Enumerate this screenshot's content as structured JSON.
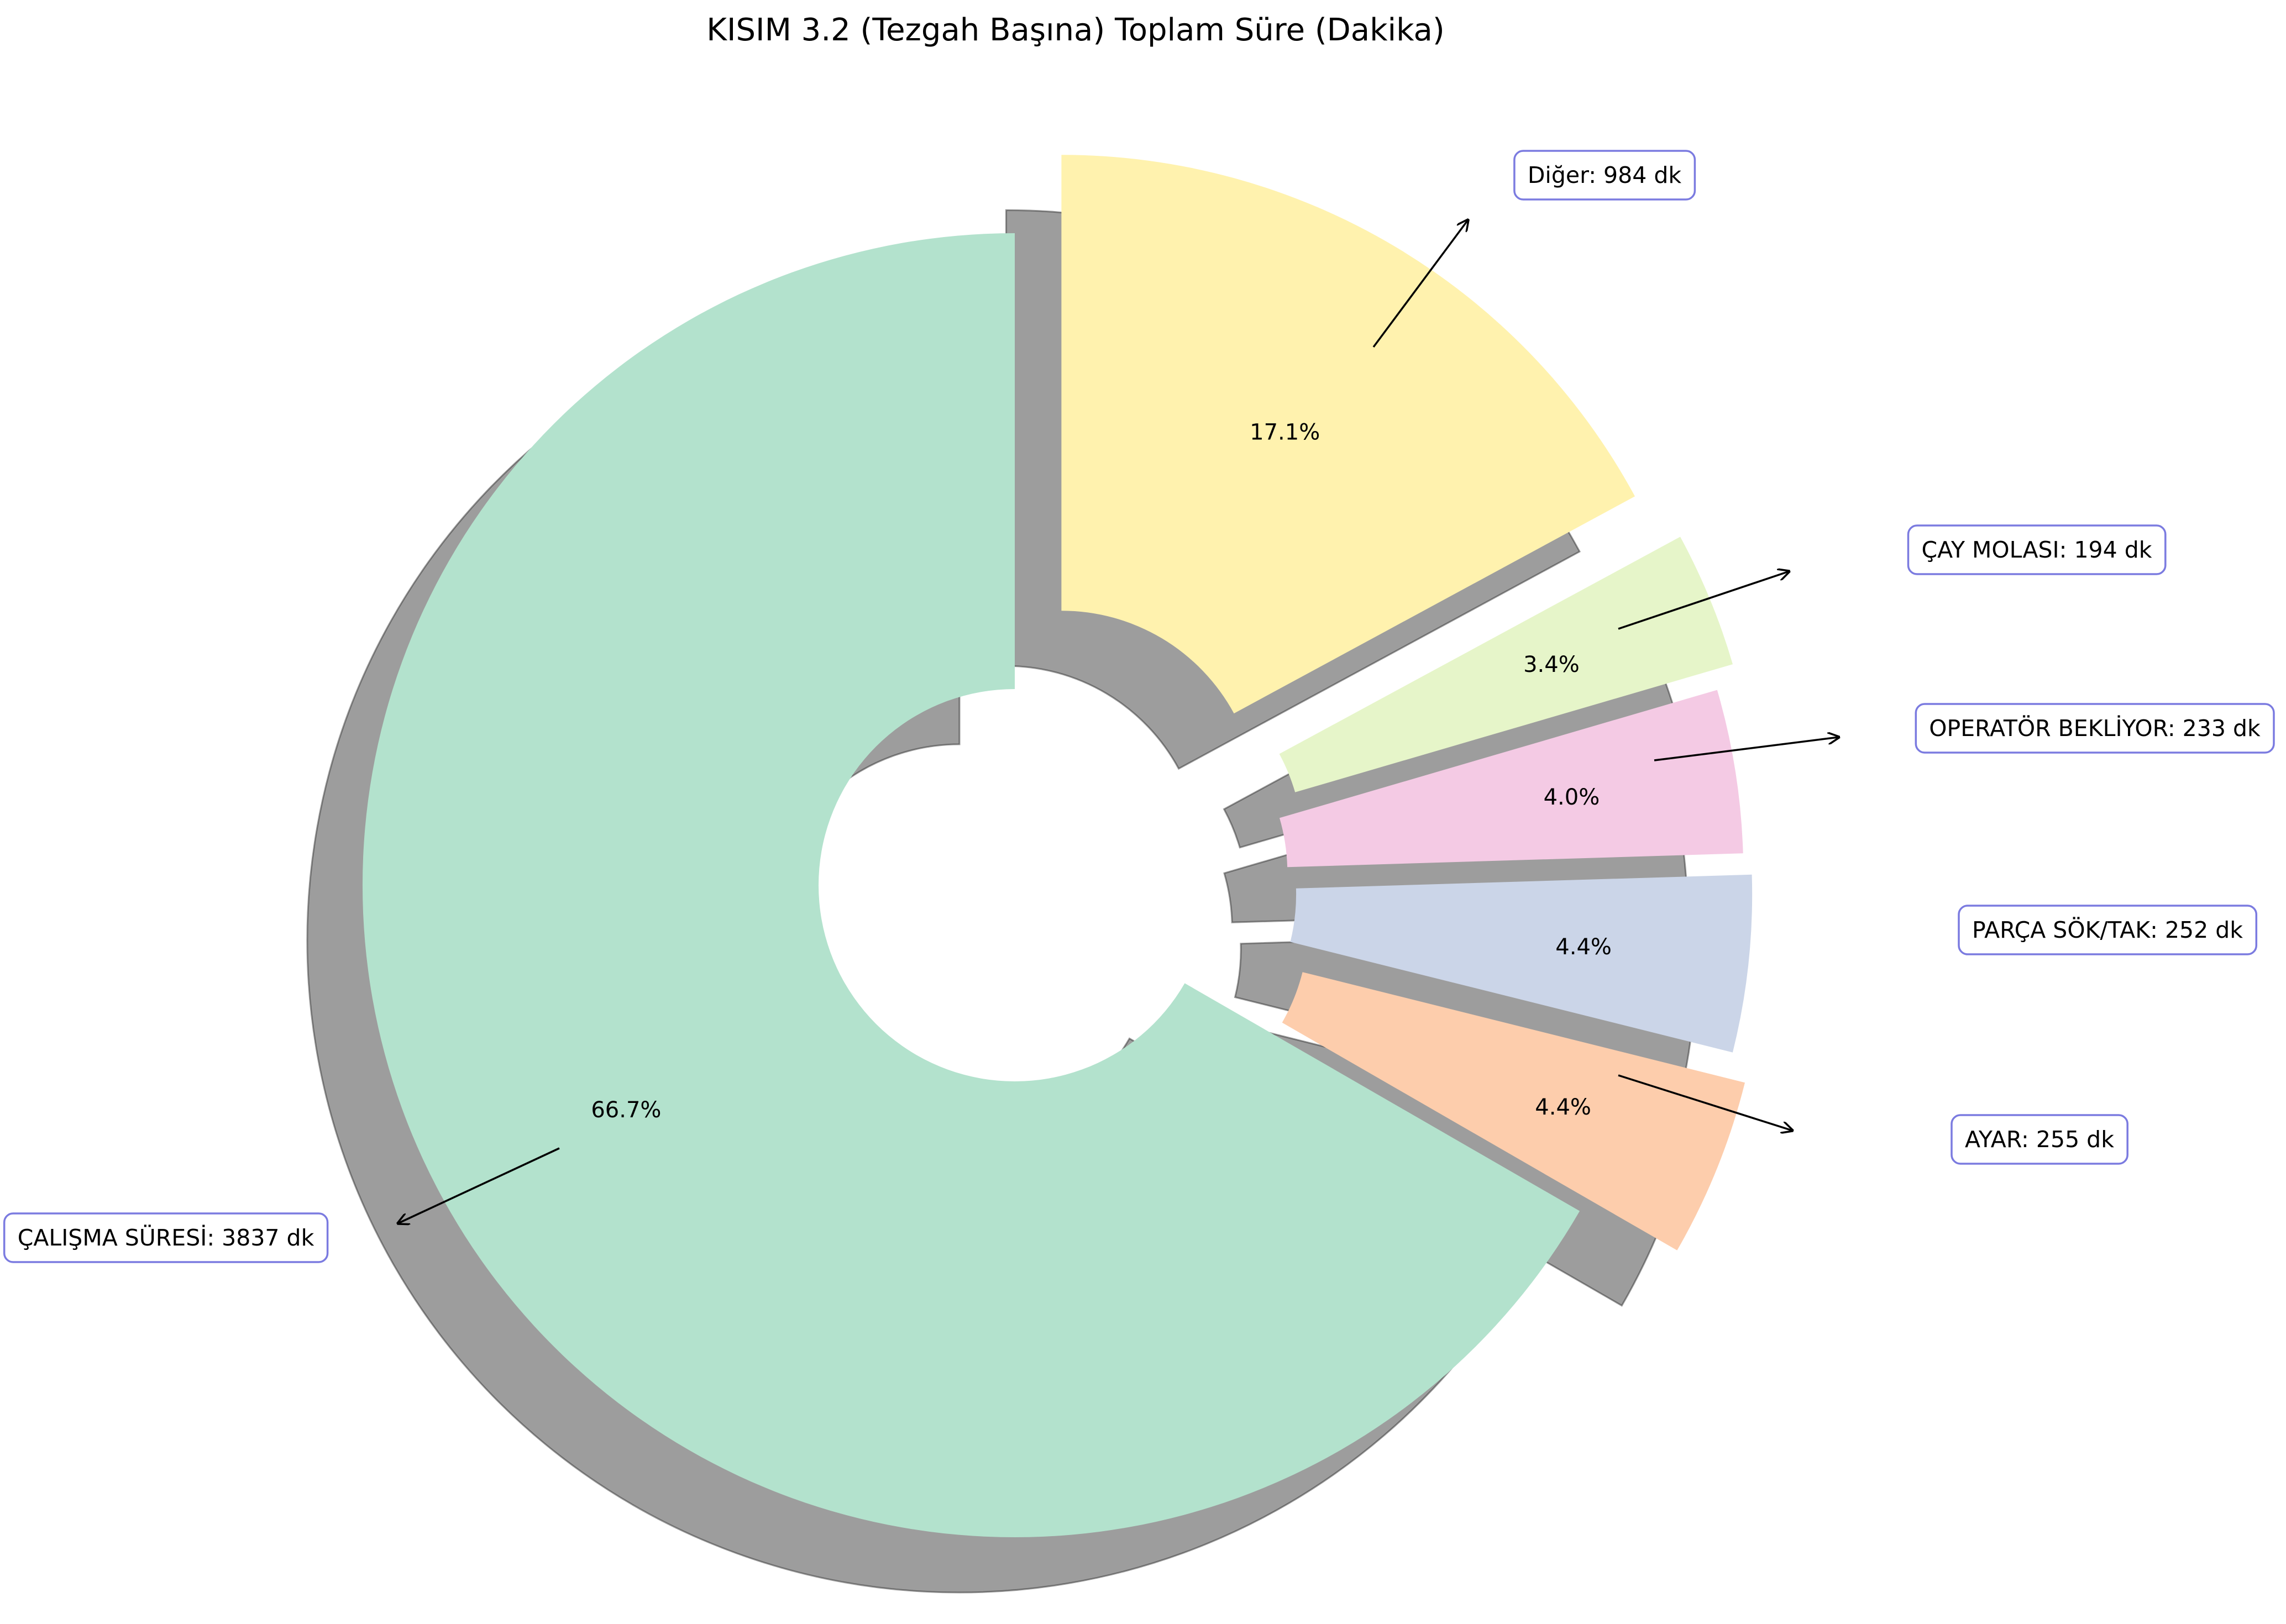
{
  "chart_data": {
    "type": "pie",
    "title": "KISIM 3.2 (Tezgah Başına) Toplam Süre (Dakika)",
    "value_unit": "dk",
    "slices": [
      {
        "label": "ÇALIŞMA SÜRESİ",
        "value": 3837,
        "pct_label": "66.7%",
        "box_label": "ÇALIŞMA SÜRESİ: 3837 dk",
        "color": "#b3e2cd"
      },
      {
        "label": "AYAR",
        "value": 255,
        "pct_label": "4.4%",
        "box_label": "AYAR: 255 dk",
        "color": "#fdcdac"
      },
      {
        "label": "PARÇA SÖK/TAK",
        "value": 252,
        "pct_label": "4.4%",
        "box_label": "PARÇA SÖK/TAK: 252 dk",
        "color": "#cbd5e8"
      },
      {
        "label": "OPERATÖR BEKLİYOR",
        "value": 233,
        "pct_label": "4.0%",
        "box_label": "OPERATÖR BEKLİYOR: 233 dk",
        "color": "#f4cae4"
      },
      {
        "label": "ÇAY MOLASI",
        "value": 194,
        "pct_label": "3.4%",
        "box_label": "ÇAY MOLASI: 194 dk",
        "color": "#e6f5c9"
      },
      {
        "label": "Diğer",
        "value": 984,
        "pct_label": "17.1%",
        "box_label": "Diğer: 984 dk",
        "color": "#fff2ae"
      }
    ],
    "start_angle_deg": 90,
    "direction": "counterclockwise",
    "donut": true,
    "shadow": true,
    "legend": "none"
  }
}
